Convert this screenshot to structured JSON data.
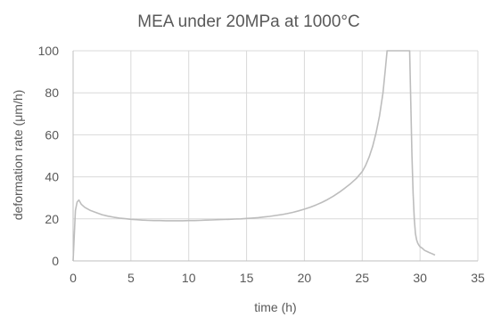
{
  "chart_data": {
    "type": "line",
    "title": "MEA under 20MPa at 1000°C",
    "xlabel": "time (h)",
    "ylabel": "deformation rate (μm/h)",
    "xlim": [
      0,
      35
    ],
    "ylim": [
      0,
      100
    ],
    "xticks": [
      "0",
      "5",
      "10",
      "15",
      "20",
      "25",
      "30",
      "35"
    ],
    "yticks": [
      "0",
      "20",
      "40",
      "60",
      "80",
      "100"
    ],
    "grid": true,
    "legend": "none",
    "series_color": "#bdbdbd",
    "series": [
      {
        "x": [
          0.0,
          0.1,
          0.2,
          0.35,
          0.5,
          0.7,
          1.0,
          1.5,
          2.0,
          2.5,
          3.0,
          3.5,
          4.0,
          4.5,
          5.0,
          5.5,
          6.0,
          6.5,
          7.0,
          7.5,
          8.0,
          8.5,
          9.0,
          9.5,
          10.0,
          10.5,
          11.0,
          11.5,
          12.0,
          12.5,
          13.0,
          13.5,
          14.0,
          14.5,
          15.0,
          15.5,
          16.0,
          16.5,
          17.0,
          17.5,
          18.0,
          18.5,
          19.0,
          19.5,
          20.0,
          20.5,
          21.0,
          21.5,
          22.0,
          22.5,
          23.0,
          23.5,
          24.0,
          24.5,
          25.0,
          25.3,
          25.6,
          25.9,
          26.2,
          26.5,
          26.8,
          27.0,
          27.15,
          29.1,
          29.2,
          29.3,
          29.4,
          29.5,
          29.6,
          29.7,
          29.8,
          29.9,
          30.0,
          30.2,
          30.4,
          30.6,
          30.8,
          31.0,
          31.2,
          31.3
        ],
        "y": [
          0,
          12,
          24,
          28,
          29,
          27,
          25.5,
          24,
          23,
          22,
          21.3,
          20.8,
          20.4,
          20.1,
          19.8,
          19.6,
          19.4,
          19.3,
          19.2,
          19.2,
          19.1,
          19.1,
          19.1,
          19.1,
          19.2,
          19.2,
          19.3,
          19.4,
          19.5,
          19.6,
          19.7,
          19.8,
          19.9,
          20.0,
          20.2,
          20.4,
          20.6,
          20.9,
          21.2,
          21.6,
          22.0,
          22.5,
          23.1,
          23.8,
          24.6,
          25.5,
          26.6,
          27.8,
          29.2,
          30.8,
          32.6,
          34.6,
          36.8,
          39.3,
          42.5,
          45.5,
          49.5,
          54.5,
          61.0,
          69.0,
          80.0,
          91.0,
          100.0,
          100.0,
          75.0,
          50.0,
          32.0,
          20.0,
          13.0,
          10.0,
          8.5,
          7.5,
          6.8,
          6.0,
          5.0,
          4.5,
          4.0,
          3.5,
          3.0,
          2.8
        ]
      }
    ]
  }
}
